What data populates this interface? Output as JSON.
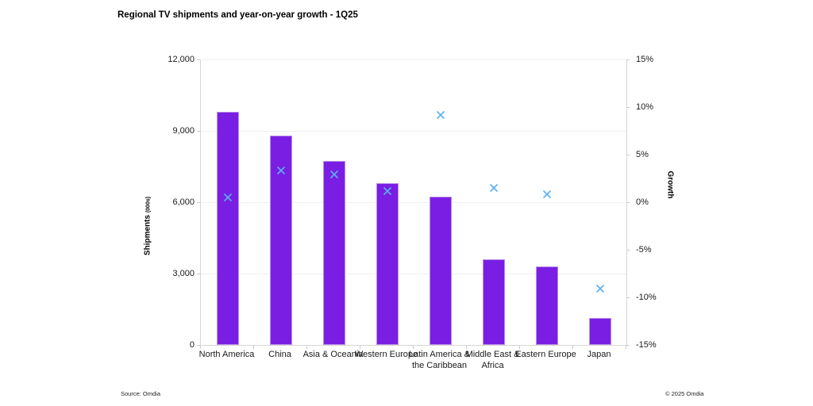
{
  "chart_data": {
    "type": "combo",
    "title": "Regional TV shipments and year-on-year growth - 1Q25",
    "categories": [
      "North America",
      "China",
      "Asia & Oceania",
      "Western Europe",
      "Latin America & the Caribbean",
      "Middle East & Africa",
      "Eastern Europe",
      "Japan"
    ],
    "series": [
      {
        "name": "Shipments (000s)",
        "type": "bar",
        "axis": "left",
        "color": "#7a1ee4",
        "values": [
          9800,
          8800,
          7750,
          6800,
          6250,
          3600,
          3300,
          1150
        ]
      },
      {
        "name": "Growth",
        "type": "scatter",
        "axis": "right",
        "marker": "x",
        "color": "#5bb0ee",
        "values": [
          0.5,
          3.3,
          2.9,
          1.2,
          9.2,
          1.5,
          0.8,
          -9.1
        ]
      }
    ],
    "left_axis": {
      "label_main": "Shipments",
      "label_sub": "(000s)",
      "min": 0,
      "max": 12000,
      "tick_step": 3000,
      "ticks": [
        "12,000",
        "9,000",
        "6,000",
        "3,000",
        "0"
      ]
    },
    "right_axis": {
      "label": "Growth",
      "min": -15,
      "max": 15,
      "tick_step": 5,
      "ticks": [
        "15%",
        "10%",
        "5%",
        "0%",
        "-5%",
        "-10%",
        "-15%"
      ]
    },
    "grid": true,
    "legend": false
  },
  "footer": {
    "source": "Source: Omdia",
    "copyright": "© 2025 Omdia"
  }
}
